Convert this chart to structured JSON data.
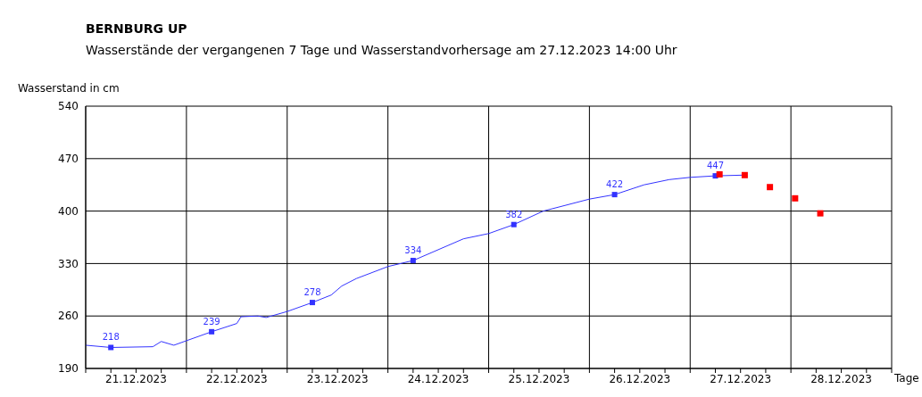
{
  "chart_data": {
    "type": "line",
    "title": "BERNBURG UP",
    "subtitle": "Wasserstände der vergangenen 7 Tage und Wasserstandvorhersage am 27.12.2023 14:00 Uhr",
    "ylabel": "Wasserstand in cm",
    "xlabel": "Tage",
    "xlim": [
      "2023-12-21T00:00",
      "2023-12-29T00:00"
    ],
    "xticks": [
      {
        "value": "2023-12-21T00:00",
        "label": null
      },
      {
        "value": "2023-12-21T06:00",
        "label": null
      },
      {
        "value": "2023-12-21T12:00",
        "label": "21.12.2023"
      },
      {
        "value": "2023-12-21T18:00",
        "label": null
      },
      {
        "value": "2023-12-22T00:00",
        "label": null
      },
      {
        "value": "2023-12-22T06:00",
        "label": null
      },
      {
        "value": "2023-12-22T12:00",
        "label": "22.12.2023"
      },
      {
        "value": "2023-12-22T18:00",
        "label": null
      },
      {
        "value": "2023-12-23T00:00",
        "label": null
      },
      {
        "value": "2023-12-23T06:00",
        "label": null
      },
      {
        "value": "2023-12-23T12:00",
        "label": "23.12.2023"
      },
      {
        "value": "2023-12-23T18:00",
        "label": null
      },
      {
        "value": "2023-12-24T00:00",
        "label": null
      },
      {
        "value": "2023-12-24T06:00",
        "label": null
      },
      {
        "value": "2023-12-24T12:00",
        "label": "24.12.2023"
      },
      {
        "value": "2023-12-24T18:00",
        "label": null
      },
      {
        "value": "2023-12-25T00:00",
        "label": null
      },
      {
        "value": "2023-12-25T06:00",
        "label": null
      },
      {
        "value": "2023-12-25T12:00",
        "label": "25.12.2023"
      },
      {
        "value": "2023-12-25T18:00",
        "label": null
      },
      {
        "value": "2023-12-26T00:00",
        "label": null
      },
      {
        "value": "2023-12-26T06:00",
        "label": null
      },
      {
        "value": "2023-12-26T12:00",
        "label": "26.12.2023"
      },
      {
        "value": "2023-12-26T18:00",
        "label": null
      },
      {
        "value": "2023-12-27T00:00",
        "label": null
      },
      {
        "value": "2023-12-27T06:00",
        "label": null
      },
      {
        "value": "2023-12-27T12:00",
        "label": "27.12.2023"
      },
      {
        "value": "2023-12-27T18:00",
        "label": null
      },
      {
        "value": "2023-12-28T00:00",
        "label": null
      },
      {
        "value": "2023-12-28T06:00",
        "label": null
      },
      {
        "value": "2023-12-28T12:00",
        "label": "28.12.2023"
      },
      {
        "value": "2023-12-28T18:00",
        "label": null
      },
      {
        "value": "2023-12-29T00:00",
        "label": null
      }
    ],
    "ylim": [
      190,
      540
    ],
    "yticks": [
      190,
      260,
      330,
      400,
      470,
      540
    ],
    "grid": true,
    "marker": "square",
    "series": [
      {
        "color": "#3333ff",
        "marker": "none",
        "x": [
          "2023-12-21T00:00",
          "2023-12-21T06:00",
          "2023-12-21T16:00",
          "2023-12-21T18:00",
          "2023-12-21T21:00",
          "2023-12-22T00:00",
          "2023-12-22T06:00",
          "2023-12-22T12:00",
          "2023-12-22T13:00",
          "2023-12-22T17:00",
          "2023-12-22T19:00",
          "2023-12-23T00:00",
          "2023-12-23T06:00",
          "2023-12-23T10:30",
          "2023-12-23T13:00",
          "2023-12-23T16:30",
          "2023-12-24T00:00",
          "2023-12-24T06:00",
          "2023-12-24T18:00",
          "2023-12-25T00:00",
          "2023-12-25T06:00",
          "2023-12-25T13:00",
          "2023-12-26T00:00",
          "2023-12-26T06:00",
          "2023-12-26T13:00",
          "2023-12-26T19:00",
          "2023-12-27T00:00",
          "2023-12-27T06:00",
          "2023-12-27T13:00"
        ],
        "values": [
          221,
          218,
          219,
          226,
          221,
          227,
          239,
          250,
          259,
          260,
          258,
          266,
          278,
          288,
          300,
          310,
          326,
          334,
          363,
          370,
          382,
          400,
          416,
          422,
          435,
          442,
          445,
          447,
          448
        ]
      },
      {
        "type": "scatter",
        "color": "#3333ff",
        "x": [
          "2023-12-21T06:00",
          "2023-12-22T06:00",
          "2023-12-23T06:00",
          "2023-12-24T06:00",
          "2023-12-25T06:00",
          "2023-12-26T06:00",
          "2023-12-27T06:00"
        ],
        "values": [
          218,
          239,
          278,
          334,
          382,
          422,
          447
        ],
        "data_labels": true
      },
      {
        "type": "scatter",
        "color": "#ff0000",
        "x": [
          "2023-12-27T07:00",
          "2023-12-27T13:00",
          "2023-12-27T19:00",
          "2023-12-28T01:00",
          "2023-12-28T07:00"
        ],
        "values": [
          449,
          448,
          432,
          417,
          397
        ]
      }
    ]
  }
}
